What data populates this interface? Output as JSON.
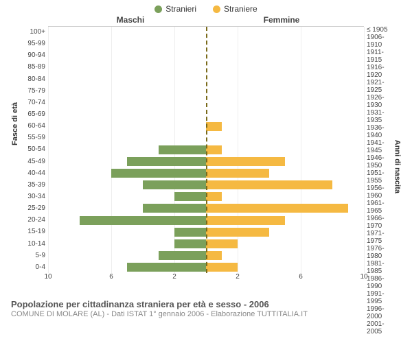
{
  "chart": {
    "type": "population-pyramid",
    "legend": {
      "male": {
        "label": "Stranieri",
        "color": "#7ba05b"
      },
      "female": {
        "label": "Straniere",
        "color": "#f5b942"
      }
    },
    "panel_titles": {
      "left": "Maschi",
      "right": "Femmine"
    },
    "y_axis_left": {
      "title": "Fasce di età"
    },
    "y_axis_right": {
      "title": "Anni di nascita"
    },
    "x_axis": {
      "max": 10,
      "ticks_left": [
        10,
        6,
        2
      ],
      "ticks_right": [
        0,
        2,
        6,
        10
      ]
    },
    "age_groups": [
      "100+",
      "95-99",
      "90-94",
      "85-89",
      "80-84",
      "75-79",
      "70-74",
      "65-69",
      "60-64",
      "55-59",
      "50-54",
      "45-49",
      "40-44",
      "35-39",
      "30-34",
      "25-29",
      "20-24",
      "15-19",
      "10-14",
      "5-9",
      "0-4"
    ],
    "birth_years": [
      "≤ 1905",
      "1906-1910",
      "1911-1915",
      "1916-1920",
      "1921-1925",
      "1926-1930",
      "1931-1935",
      "1936-1940",
      "1941-1945",
      "1946-1950",
      "1951-1955",
      "1956-1960",
      "1961-1965",
      "1966-1970",
      "1971-1975",
      "1976-1980",
      "1981-1985",
      "1986-1990",
      "1991-1995",
      "1996-2000",
      "2001-2005"
    ],
    "male_values": [
      0,
      0,
      0,
      0,
      0,
      0,
      0,
      0,
      0,
      0,
      3,
      5,
      6,
      4,
      2,
      4,
      8,
      2,
      2,
      3,
      5
    ],
    "female_values": [
      0,
      0,
      0,
      0,
      0,
      0,
      0,
      0,
      1,
      0,
      1,
      5,
      4,
      8,
      1,
      9,
      5,
      4,
      2,
      1,
      2
    ],
    "divider_color": "#7a6a1a",
    "background_color": "#ffffff",
    "grid_color": "#eeeeee"
  },
  "footer": {
    "title": "Popolazione per cittadinanza straniera per età e sesso - 2006",
    "subtitle": "COMUNE DI MOLARE (AL) - Dati ISTAT 1° gennaio 2006 - Elaborazione TUTTITALIA.IT"
  }
}
